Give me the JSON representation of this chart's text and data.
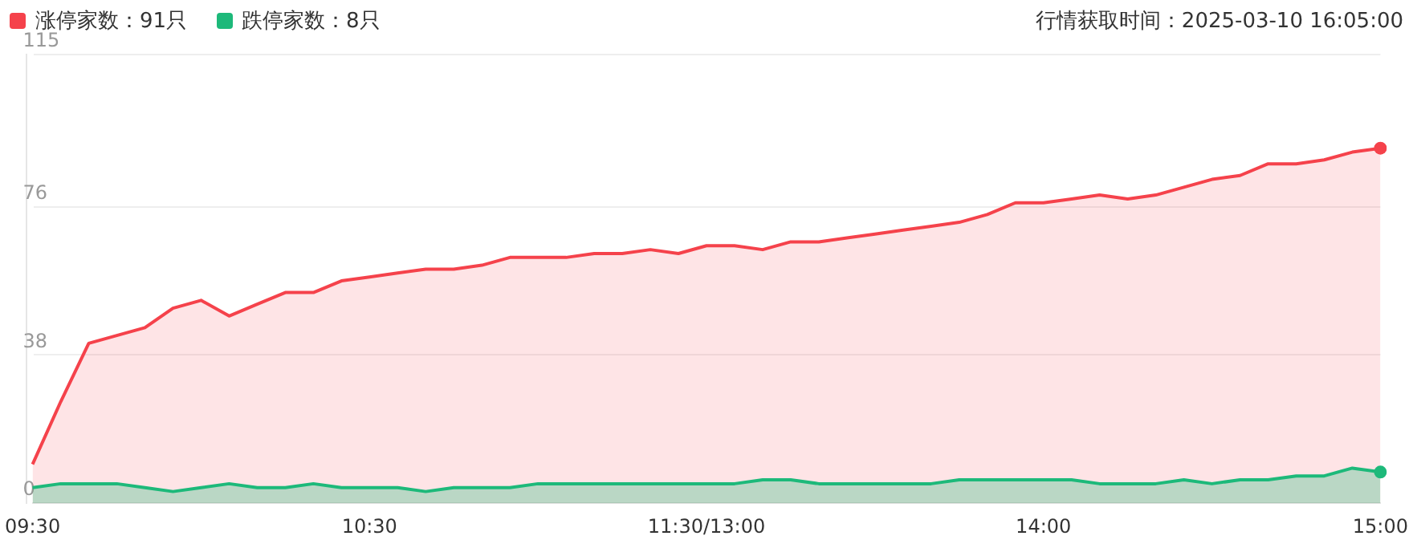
{
  "chart_data": {
    "type": "area",
    "categories": [
      "09:30",
      null,
      null,
      null,
      null,
      null,
      null,
      null,
      null,
      null,
      null,
      null,
      "10:30",
      null,
      null,
      null,
      null,
      null,
      null,
      null,
      null,
      null,
      null,
      null,
      "11:30/13:00",
      null,
      null,
      null,
      null,
      null,
      null,
      null,
      null,
      null,
      null,
      null,
      "14:00",
      null,
      null,
      null,
      null,
      null,
      null,
      null,
      null,
      null,
      null,
      null,
      "15:00"
    ],
    "series": [
      {
        "name": "涨停家数：91只",
        "color": "#f5424b",
        "values": [
          10,
          26,
          41,
          43,
          45,
          50,
          52,
          48,
          51,
          54,
          54,
          57,
          58,
          59,
          60,
          60,
          61,
          63,
          63,
          63,
          64,
          64,
          65,
          64,
          66,
          66,
          65,
          67,
          67,
          68,
          69,
          70,
          71,
          72,
          74,
          77,
          77,
          78,
          79,
          78,
          79,
          81,
          83,
          84,
          87,
          87,
          88,
          90,
          91
        ]
      },
      {
        "name": "跌停家数：8只",
        "color": "#1db97a",
        "values": [
          4,
          5,
          5,
          5,
          4,
          3,
          4,
          5,
          4,
          4,
          5,
          4,
          4,
          4,
          3,
          4,
          4,
          4,
          5,
          5,
          5,
          5,
          5,
          5,
          5,
          5,
          6,
          6,
          5,
          5,
          5,
          5,
          5,
          6,
          6,
          6,
          6,
          6,
          5,
          5,
          5,
          6,
          5,
          6,
          6,
          7,
          7,
          9,
          8
        ]
      }
    ],
    "ylim": [
      0,
      115
    ],
    "yticks": [
      0,
      38,
      76,
      115
    ],
    "grid": "y",
    "legend": "top left",
    "annotations": [
      "行情获取时间：2025-03-10 16:05:00"
    ]
  }
}
